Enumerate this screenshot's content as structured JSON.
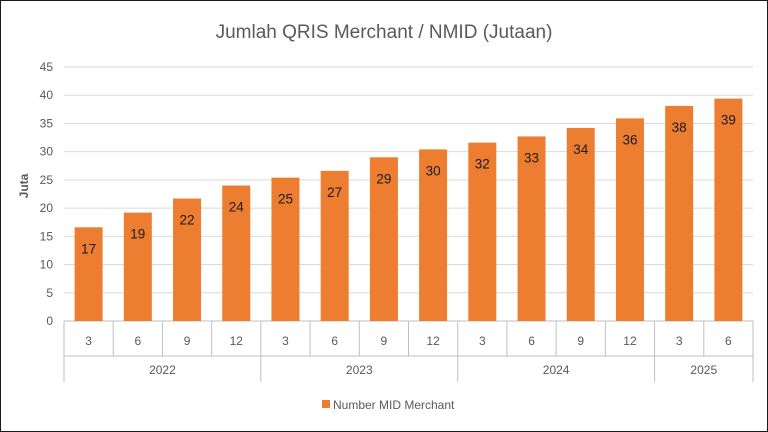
{
  "chart_data": {
    "type": "bar",
    "title": "Jumlah QRIS Merchant / NMID (Jutaan)",
    "ylabel": "Juta",
    "xlabel": "",
    "ylim": [
      0,
      45
    ],
    "yticks": [
      0,
      5,
      10,
      15,
      20,
      25,
      30,
      35,
      40,
      45
    ],
    "grid": true,
    "legend_position": "bottom",
    "bar_color": "#ed7d31",
    "categories": [
      "3",
      "6",
      "9",
      "12",
      "3",
      "6",
      "9",
      "12",
      "3",
      "6",
      "9",
      "12",
      "3",
      "6"
    ],
    "groups": [
      {
        "label": "2022",
        "count": 4
      },
      {
        "label": "2023",
        "count": 4
      },
      {
        "label": "2024",
        "count": 4
      },
      {
        "label": "2025",
        "count": 2
      }
    ],
    "series": [
      {
        "name": "Number MID Merchant",
        "values": [
          16.6,
          19.2,
          21.7,
          24.0,
          25.4,
          26.6,
          29.0,
          30.4,
          31.6,
          32.7,
          34.2,
          35.9,
          38.1,
          39.4
        ],
        "labels": [
          "17",
          "19",
          "22",
          "24",
          "25",
          "27",
          "29",
          "30",
          "32",
          "33",
          "34",
          "36",
          "38",
          "39"
        ]
      }
    ]
  }
}
